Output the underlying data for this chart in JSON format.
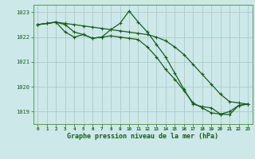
{
  "background_color": "#cce8e8",
  "grid_color": "#aacccc",
  "line_color": "#1a5c1a",
  "title": "Graphe pression niveau de la mer (hPa)",
  "xlim": [
    -0.5,
    23.5
  ],
  "ylim": [
    1018.5,
    1023.3
  ],
  "yticks": [
    1019,
    1020,
    1021,
    1022,
    1023
  ],
  "xtick_labels": [
    "0",
    "1",
    "2",
    "3",
    "4",
    "5",
    "6",
    "7",
    "8",
    "9",
    "10",
    "11",
    "12",
    "13",
    "14",
    "15",
    "16",
    "17",
    "18",
    "19",
    "20",
    "21",
    "22",
    "23"
  ],
  "series1": {
    "x": [
      0,
      1,
      2,
      3,
      4,
      5,
      6,
      7,
      8,
      9,
      10,
      11,
      12,
      13,
      14,
      15,
      16,
      17,
      18,
      19,
      20,
      21,
      22,
      23
    ],
    "y": [
      1022.5,
      1022.55,
      1022.6,
      1022.55,
      1022.5,
      1022.45,
      1022.4,
      1022.35,
      1022.3,
      1022.25,
      1022.2,
      1022.15,
      1022.1,
      1022.0,
      1021.85,
      1021.6,
      1021.3,
      1020.9,
      1020.5,
      1020.1,
      1019.7,
      1019.4,
      1019.35,
      1019.3
    ]
  },
  "series2": {
    "x": [
      0,
      1,
      2,
      3,
      4,
      5,
      6,
      7,
      8,
      9,
      10,
      11,
      12,
      13,
      14,
      15,
      16,
      17,
      18,
      19,
      20,
      21,
      22,
      23
    ],
    "y": [
      1022.5,
      1022.55,
      1022.6,
      1022.5,
      1022.2,
      1022.1,
      1021.95,
      1022.0,
      1022.05,
      1022.0,
      1021.95,
      1021.9,
      1021.6,
      1021.2,
      1020.7,
      1020.3,
      1019.85,
      1019.35,
      1019.15,
      1018.95,
      1018.9,
      1019.0,
      1019.25,
      1019.3
    ]
  },
  "series3": {
    "x": [
      0,
      1,
      2,
      3,
      4,
      5,
      6,
      7,
      8,
      9,
      10,
      11,
      12,
      13,
      14,
      15,
      16,
      17,
      18,
      19,
      20,
      21,
      22,
      23
    ],
    "y": [
      1022.5,
      1022.55,
      1022.6,
      1022.2,
      1022.0,
      1022.1,
      1021.95,
      1022.0,
      1022.3,
      1022.55,
      1023.05,
      1022.6,
      1022.2,
      1021.7,
      1021.2,
      1020.55,
      1019.9,
      1019.3,
      1019.2,
      1019.15,
      1018.9,
      1018.88,
      1019.25,
      1019.3
    ]
  }
}
